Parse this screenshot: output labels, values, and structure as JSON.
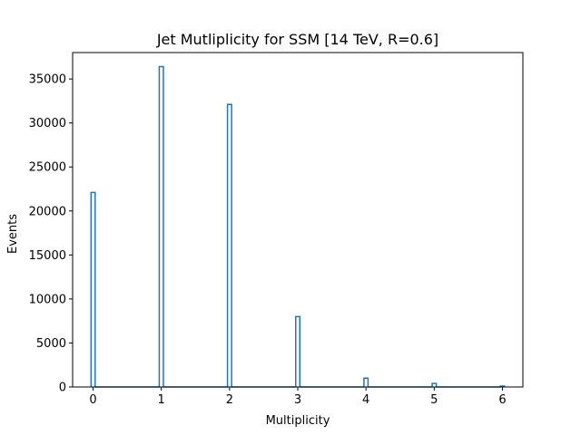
{
  "chart_data": {
    "type": "bar",
    "title": "Jet Mutliplicity for SSM [14 TeV, R=0.6]",
    "xlabel": "Multiplicity",
    "ylabel": "Events",
    "xlim": [
      -0.3,
      6.3
    ],
    "ylim": [
      0,
      38000
    ],
    "xticks": [
      0,
      1,
      2,
      3,
      4,
      5,
      6
    ],
    "yticks": [
      0,
      5000,
      10000,
      15000,
      20000,
      25000,
      30000,
      35000
    ],
    "histtype": "step",
    "bin_width": 0.06,
    "categories": [
      0,
      1,
      2,
      3,
      4,
      5,
      6
    ],
    "values": [
      22100,
      36400,
      32100,
      8000,
      1000,
      400,
      100
    ],
    "color": "#1f77b4",
    "grid": false,
    "legend": "none"
  }
}
